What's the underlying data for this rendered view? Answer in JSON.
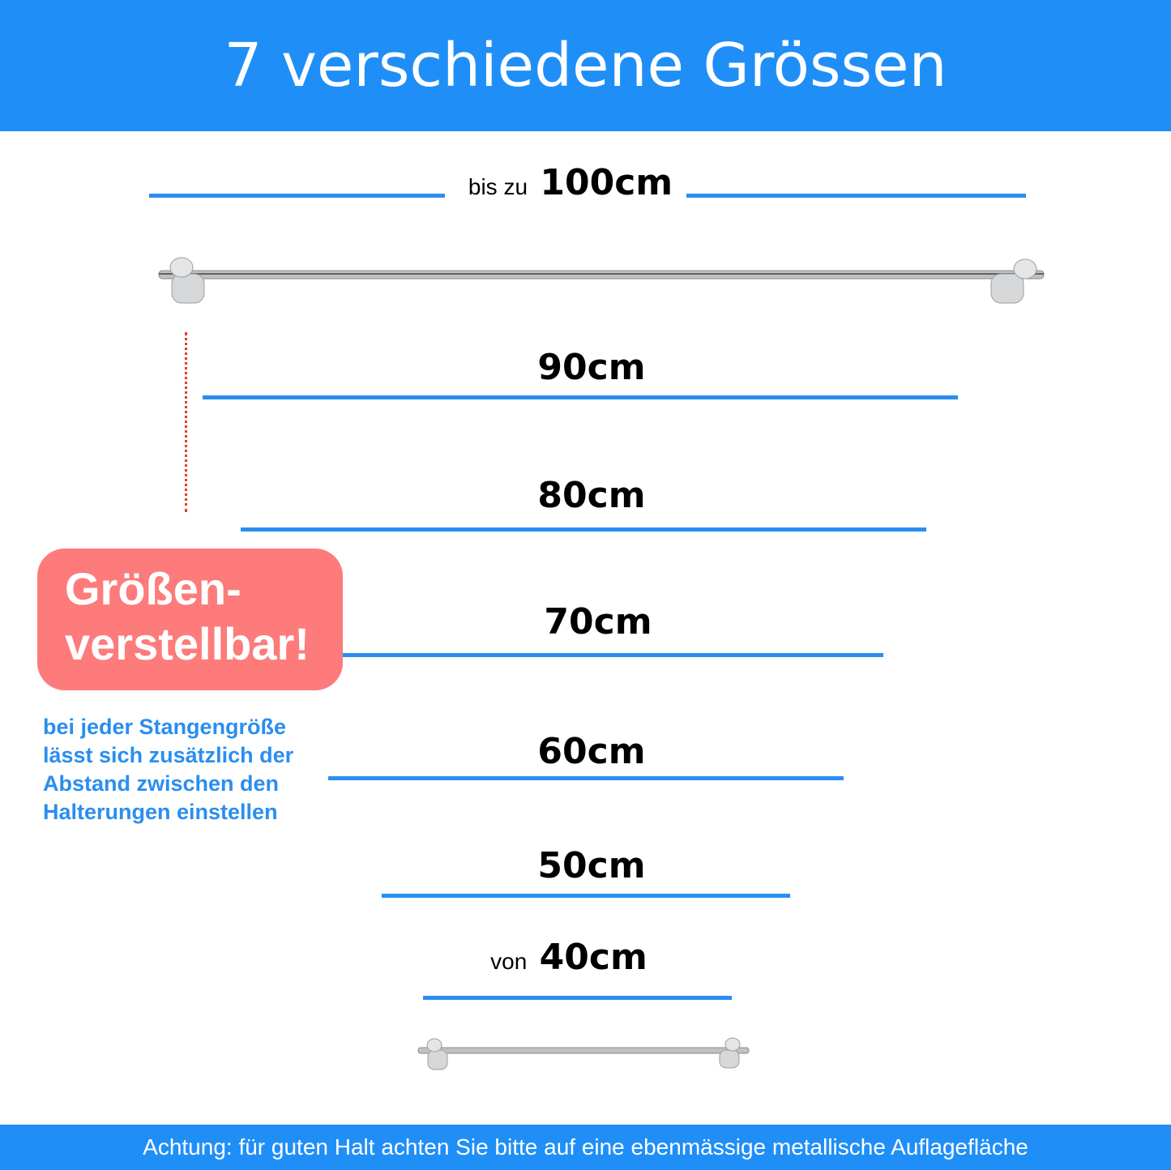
{
  "header": {
    "title": "7 verschiedene Grössen"
  },
  "sizes": [
    {
      "prefix": "bis zu",
      "label": "100cm"
    },
    {
      "label": "90cm"
    },
    {
      "label": "80cm"
    },
    {
      "label": "70cm"
    },
    {
      "label": "60cm"
    },
    {
      "label": "50cm"
    },
    {
      "prefix": "von",
      "label": "40cm"
    }
  ],
  "badge": {
    "line1": "Größen-",
    "line2": "verstellbar!"
  },
  "note": [
    "bei jeder Stangengröße",
    "lässt sich zusätzlich der",
    "Abstand zwischen den",
    "Halterungen einstellen"
  ],
  "footer": {
    "text": "Achtung: für guten Halt achten Sie bitte auf eine ebenmässige metallische Auflagefläche"
  },
  "colors": {
    "brand_blue": "#1f8ff7",
    "badge_red": "#fd7b7b",
    "dotted_red": "#e53b2c"
  }
}
